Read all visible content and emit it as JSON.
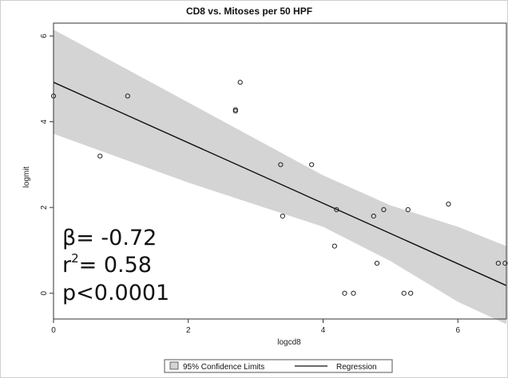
{
  "chart_data": {
    "type": "scatter",
    "title": "CD8 vs. Mitoses per 50 HPF",
    "xlabel": "logcd8",
    "ylabel": "logmit",
    "xlim": [
      0,
      6.72
    ],
    "ylim": [
      -0.6,
      6.3
    ],
    "x_ticks": [
      "0",
      "2",
      "4",
      "6"
    ],
    "y_ticks": [
      "0",
      "2",
      "4",
      "6"
    ],
    "points": [
      {
        "x": 0.0,
        "y": 4.6
      },
      {
        "x": 0.69,
        "y": 3.2
      },
      {
        "x": 1.1,
        "y": 4.6
      },
      {
        "x": 2.7,
        "y": 4.25
      },
      {
        "x": 2.7,
        "y": 4.28
      },
      {
        "x": 2.77,
        "y": 4.92
      },
      {
        "x": 3.37,
        "y": 3.0
      },
      {
        "x": 3.4,
        "y": 1.8
      },
      {
        "x": 3.83,
        "y": 3.0
      },
      {
        "x": 4.17,
        "y": 1.1
      },
      {
        "x": 4.2,
        "y": 1.95
      },
      {
        "x": 4.32,
        "y": 0.0
      },
      {
        "x": 4.45,
        "y": 0.0
      },
      {
        "x": 4.75,
        "y": 1.8
      },
      {
        "x": 4.8,
        "y": 0.7
      },
      {
        "x": 4.9,
        "y": 1.95
      },
      {
        "x": 5.2,
        "y": 0.0
      },
      {
        "x": 5.26,
        "y": 1.95
      },
      {
        "x": 5.3,
        "y": 0.0
      },
      {
        "x": 5.86,
        "y": 2.08
      },
      {
        "x": 6.6,
        "y": 0.7
      },
      {
        "x": 6.7,
        "y": 0.7
      }
    ],
    "regression": [
      {
        "x": 0.0,
        "y": 4.92
      },
      {
        "x": 6.72,
        "y": 0.18
      }
    ],
    "confidence_band": [
      {
        "x": 0.0,
        "upper": 6.15,
        "lower": 3.72
      },
      {
        "x": 2.0,
        "upper": 4.45,
        "lower": 2.58
      },
      {
        "x": 4.0,
        "upper": 2.75,
        "lower": 1.55
      },
      {
        "x": 5.0,
        "upper": 2.05,
        "lower": 0.75
      },
      {
        "x": 6.0,
        "upper": 1.55,
        "lower": -0.2
      },
      {
        "x": 6.72,
        "upper": 1.1,
        "lower": -0.72
      }
    ],
    "legend": [
      "95% Confidence Limits",
      "Regression"
    ],
    "legend_position": "bottom",
    "grid": false,
    "colors": {
      "band": "#d4d4d4",
      "line": "#111111",
      "point": "#222222",
      "frame": "#333333"
    }
  },
  "stats": {
    "beta": "β= -0.72",
    "r2_prefix": "r",
    "r2_sup": "2",
    "r2_value": "= 0.58",
    "p": "p<0.0001"
  }
}
